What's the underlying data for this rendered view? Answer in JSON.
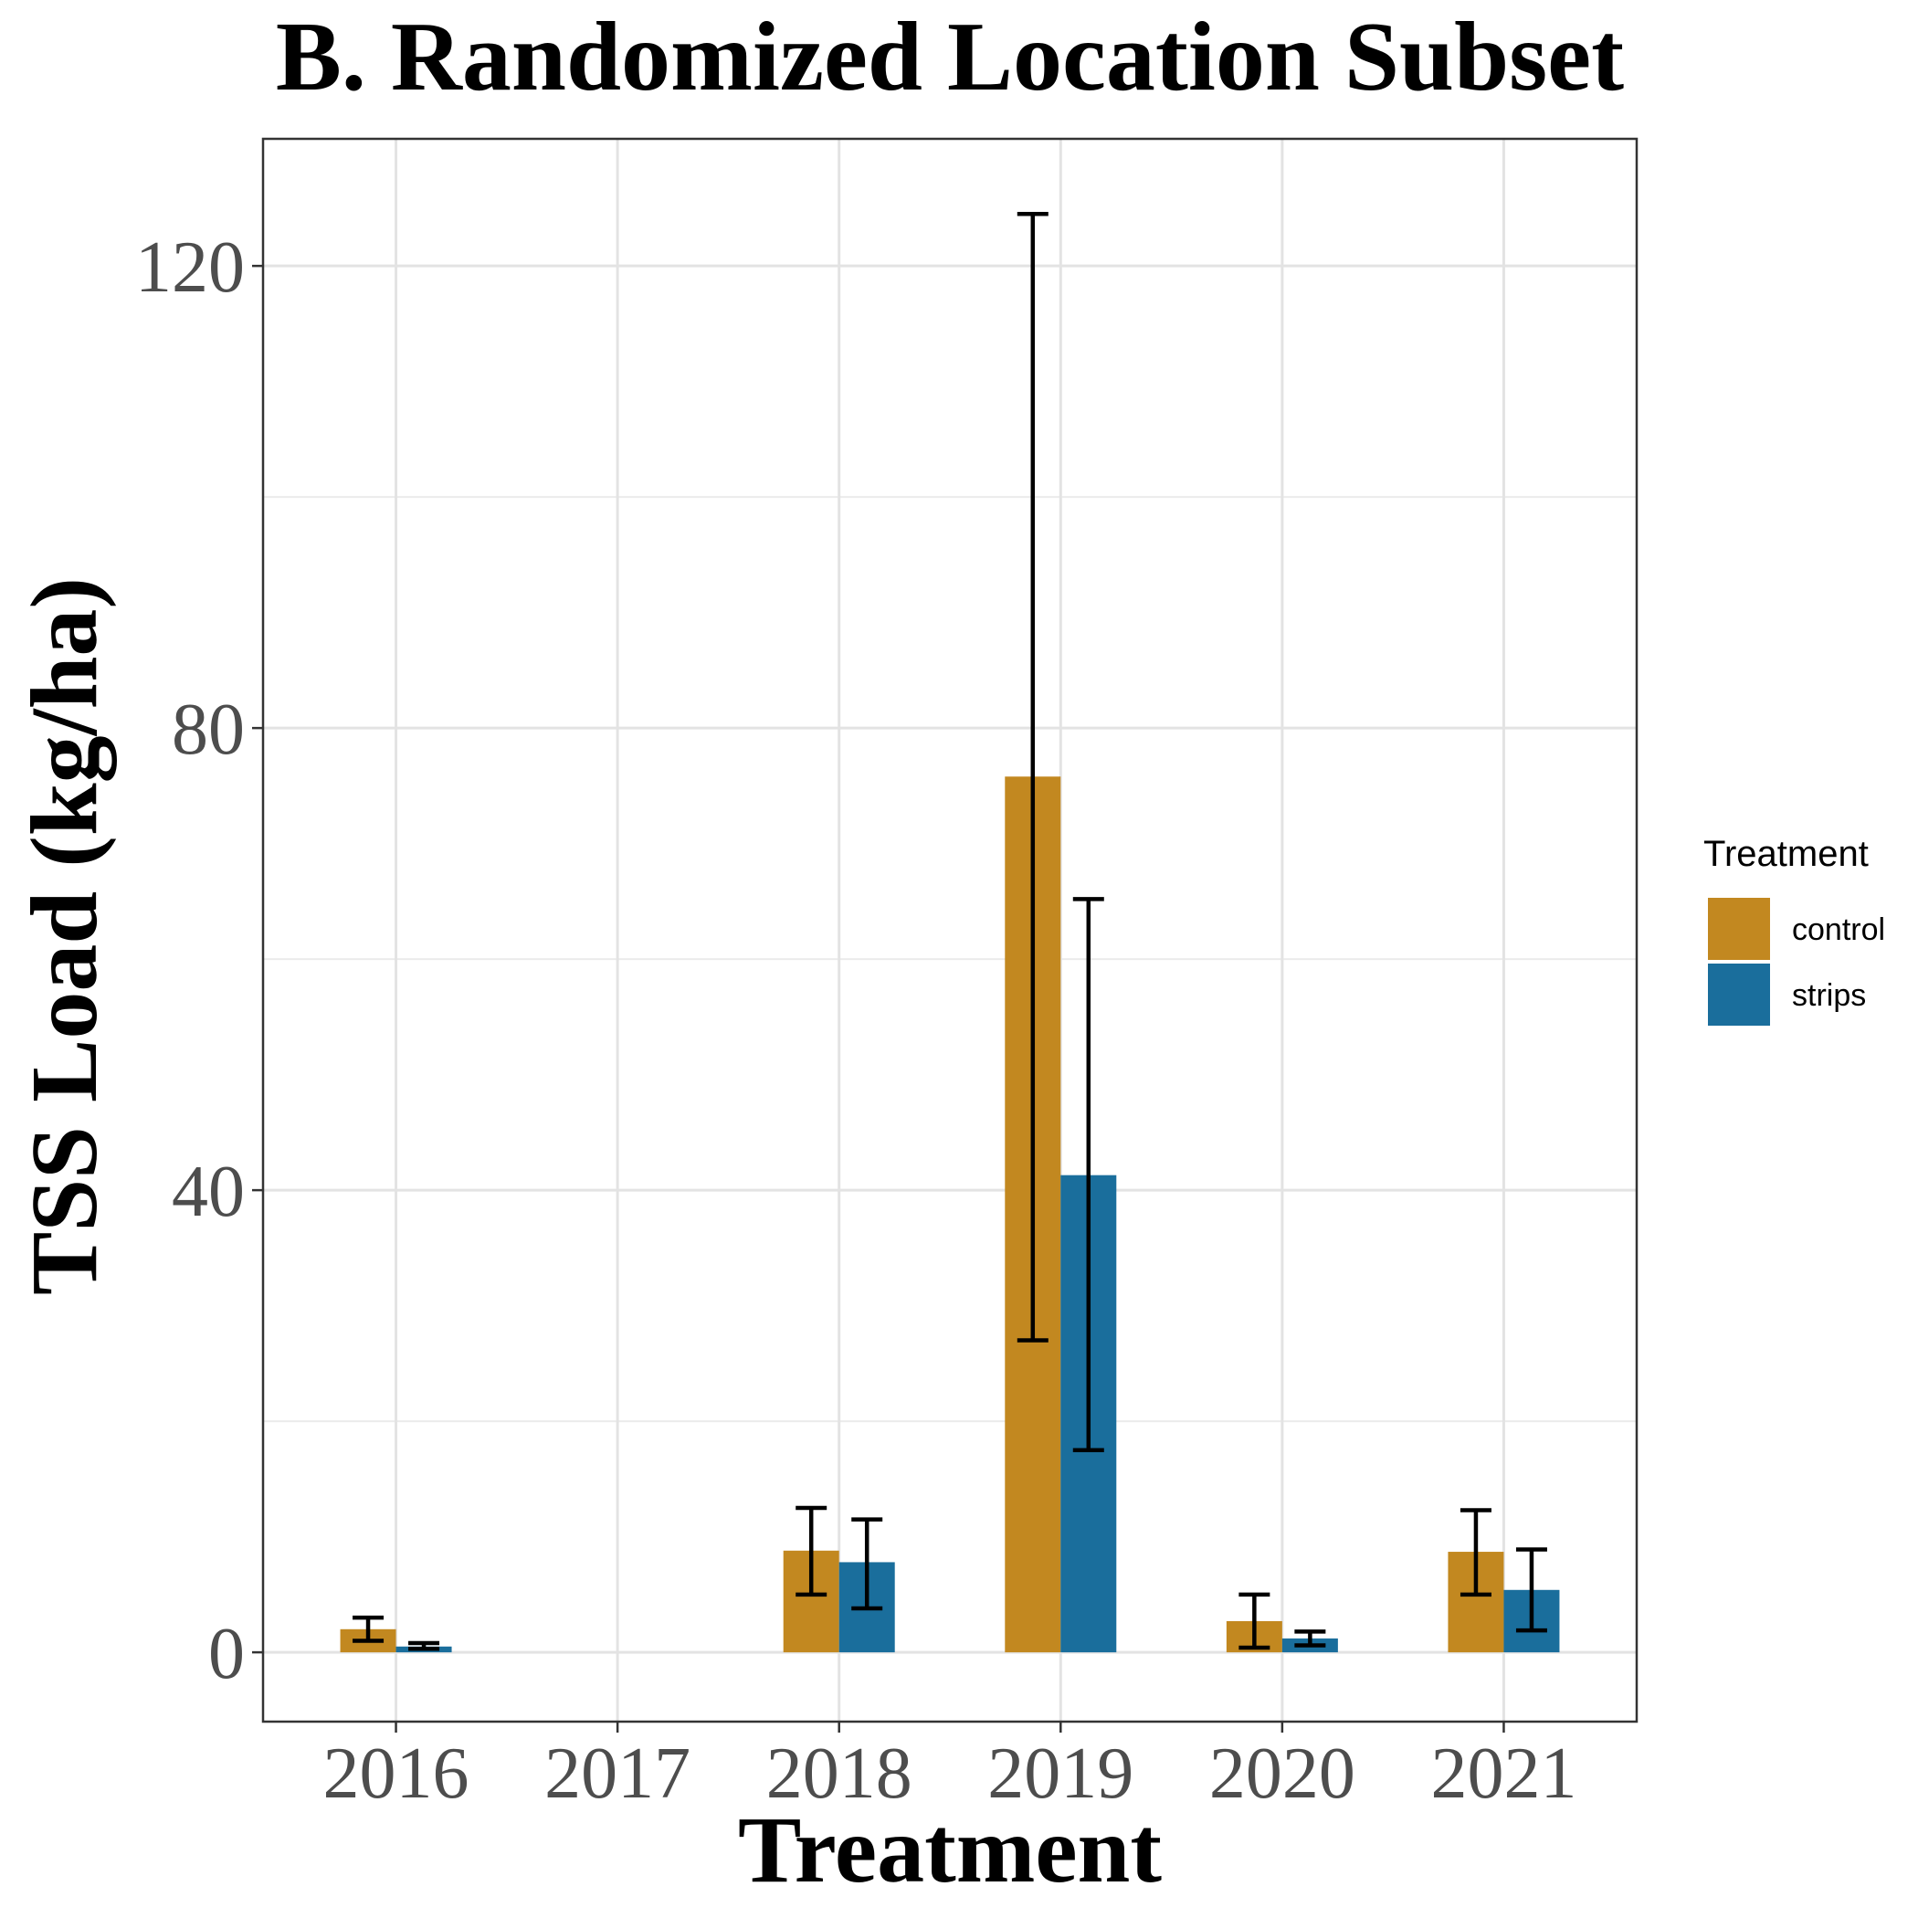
{
  "chart_data": {
    "type": "bar",
    "title": "B. Randomized Location Subset",
    "xlabel": "Treatment",
    "ylabel": "TSS Load (kg/ha)",
    "categories": [
      "2016",
      "2017",
      "2018",
      "2019",
      "2020",
      "2021"
    ],
    "ylim": [
      -6,
      131
    ],
    "yticks": [
      0,
      40,
      80,
      120
    ],
    "yticks_labels": [
      "0",
      "40",
      "80",
      "120"
    ],
    "grid": true,
    "legend": {
      "title": "Treatment",
      "position": "right"
    },
    "series": [
      {
        "name": "control",
        "color": "#C28820",
        "values": [
          2.0,
          null,
          8.8,
          75.8,
          2.7,
          8.7
        ],
        "error_low": [
          1.0,
          null,
          5.0,
          27.0,
          0.4,
          5.0
        ],
        "error_high": [
          3.0,
          null,
          12.5,
          124.5,
          5.0,
          12.3
        ]
      },
      {
        "name": "strips",
        "color": "#1A6E9C",
        "values": [
          0.5,
          null,
          7.8,
          41.3,
          1.2,
          5.4
        ],
        "error_low": [
          0.3,
          null,
          3.8,
          17.5,
          0.6,
          1.9
        ],
        "error_high": [
          0.8,
          null,
          11.5,
          65.2,
          1.8,
          8.9
        ]
      }
    ]
  }
}
